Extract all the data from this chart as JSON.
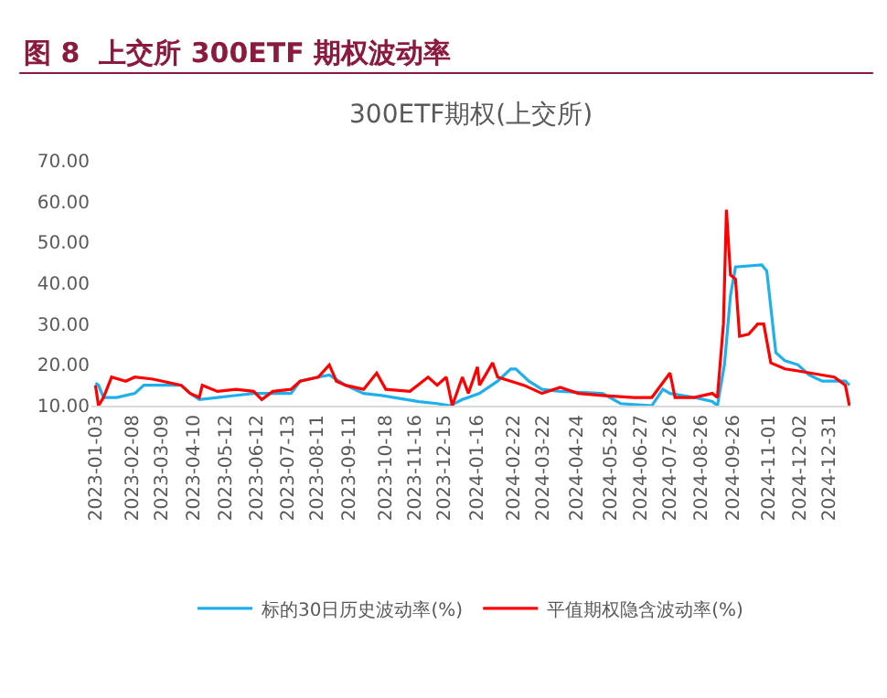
{
  "chart_data": {
    "type": "line",
    "title": "图 8  上交所 300ETF 期权波动率",
    "subtitle": "300ETF期权(上交所)",
    "xlim": [
      "2022-12-30",
      "2025-01-21"
    ],
    "xticks": [
      {
        "value": "2023-01-03",
        "label": "2023-01-03"
      },
      {
        "value": "2023-02-08",
        "label": "2023-02-08"
      },
      {
        "value": "2023-03-09",
        "label": "2023-03-09"
      },
      {
        "value": "2023-04-10",
        "label": "2023-04-10"
      },
      {
        "value": "2023-05-12",
        "label": "2023-05-12"
      },
      {
        "value": "2023-06-12",
        "label": "2023-06-12"
      },
      {
        "value": "2023-07-13",
        "label": "2023-07-13"
      },
      {
        "value": "2023-08-11",
        "label": "2023-08-11"
      },
      {
        "value": "2023-09-11",
        "label": "2023-09-11"
      },
      {
        "value": "2023-10-18",
        "label": "2023-10-18"
      },
      {
        "value": "2023-11-16",
        "label": "2023-11-16"
      },
      {
        "value": "2023-12-15",
        "label": "2023-12-15"
      },
      {
        "value": "2024-01-16",
        "label": "2024-01-16"
      },
      {
        "value": "2024-02-22",
        "label": "2024-02-22"
      },
      {
        "value": "2024-03-22",
        "label": "2024-03-22"
      },
      {
        "value": "2024-04-24",
        "label": "2024-04-24"
      },
      {
        "value": "2024-05-28",
        "label": "2024-05-28"
      },
      {
        "value": "2024-06-27",
        "label": "2024-06-27"
      },
      {
        "value": "2024-07-26",
        "label": "2024-07-26"
      },
      {
        "value": "2024-08-26",
        "label": "2024-08-26"
      },
      {
        "value": "2024-09-26",
        "label": "2024-09-26"
      },
      {
        "value": "2024-11-01",
        "label": "2024-11-01"
      },
      {
        "value": "2024-12-02",
        "label": "2024-12-02"
      },
      {
        "value": "2024-12-31",
        "label": "2024-12-31"
      }
    ],
    "ylim": [
      10,
      70
    ],
    "yticks": [
      {
        "value": 10,
        "label": "10.00"
      },
      {
        "value": 20,
        "label": "20.00"
      },
      {
        "value": 30,
        "label": "30.00"
      },
      {
        "value": 40,
        "label": "40.00"
      },
      {
        "value": 50,
        "label": "50.00"
      },
      {
        "value": 60,
        "label": "60.00"
      },
      {
        "value": 70,
        "label": "70.00"
      }
    ],
    "grid": false,
    "legend": "bottom",
    "series": [
      {
        "name": "标的30日历史波动率(%)",
        "color": "#1fb0ec",
        "x": [
          "2023-01-03",
          "2023-01-06",
          "2023-01-11",
          "2023-01-24",
          "2023-02-11",
          "2023-02-20",
          "2023-03-10",
          "2023-03-29",
          "2023-04-07",
          "2023-04-16",
          "2023-05-04",
          "2023-06-09",
          "2023-06-28",
          "2023-07-16",
          "2023-07-25",
          "2023-08-12",
          "2023-08-23",
          "2023-09-08",
          "2023-09-26",
          "2023-10-14",
          "2023-11-20",
          "2023-12-08",
          "2023-12-21",
          "2024-01-02",
          "2024-01-19",
          "2024-02-06",
          "2024-02-19",
          "2024-02-24",
          "2024-03-08",
          "2024-03-21",
          "2024-04-08",
          "2024-05-20",
          "2024-06-07",
          "2024-07-08",
          "2024-07-19",
          "2024-07-26",
          "2024-08-19",
          "2024-09-06",
          "2024-09-11",
          "2024-09-18",
          "2024-09-24",
          "2024-09-29",
          "2024-10-25",
          "2024-10-30",
          "2024-11-08",
          "2024-11-17",
          "2024-11-30",
          "2024-12-11",
          "2024-12-24",
          "2025-01-16",
          "2025-01-20"
        ],
        "values": [
          15.5,
          15,
          12,
          12,
          13,
          15,
          15,
          15,
          13,
          11.5,
          12,
          13,
          13,
          13,
          16,
          17,
          17.5,
          15,
          13,
          12.5,
          11,
          10.5,
          10,
          11.5,
          13,
          16,
          19,
          19,
          16,
          14,
          13.5,
          13,
          10.5,
          10,
          14,
          13,
          12,
          11,
          10,
          20,
          37,
          44,
          44.5,
          43,
          23,
          21,
          20,
          17.5,
          16,
          16,
          15
        ]
      },
      {
        "name": "平值期权隐含波动率(%)",
        "color": "#ff0000",
        "x": [
          "2023-01-03",
          "2023-01-06",
          "2023-01-11",
          "2023-01-19",
          "2023-02-02",
          "2023-02-11",
          "2023-03-01",
          "2023-03-29",
          "2023-04-07",
          "2023-04-16",
          "2023-04-19",
          "2023-05-04",
          "2023-05-22",
          "2023-06-09",
          "2023-06-17",
          "2023-06-28",
          "2023-07-16",
          "2023-07-25",
          "2023-08-12",
          "2023-08-23",
          "2023-08-30",
          "2023-09-08",
          "2023-09-26",
          "2023-10-09",
          "2023-10-18",
          "2023-11-11",
          "2023-11-29",
          "2023-12-08",
          "2023-12-17",
          "2023-12-23",
          "2024-01-02",
          "2024-01-08",
          "2024-01-17",
          "2024-01-19",
          "2024-02-01",
          "2024-02-06",
          "2024-02-19",
          "2024-03-03",
          "2024-03-21",
          "2024-04-08",
          "2024-04-26",
          "2024-05-20",
          "2024-06-20",
          "2024-07-08",
          "2024-07-26",
          "2024-07-31",
          "2024-08-19",
          "2024-09-06",
          "2024-09-11",
          "2024-09-17",
          "2024-09-20",
          "2024-09-24",
          "2024-09-29",
          "2024-10-03",
          "2024-10-12",
          "2024-10-21",
          "2024-10-27",
          "2024-11-03",
          "2024-11-17",
          "2024-11-30",
          "2024-12-24",
          "2025-01-05",
          "2025-01-16",
          "2025-01-20"
        ],
        "values": [
          15,
          10,
          12,
          17,
          16,
          17,
          16.5,
          15,
          13,
          12,
          15,
          13.5,
          14,
          13.5,
          11.5,
          13.5,
          14,
          16,
          17,
          20,
          16,
          15,
          14,
          18,
          14,
          13.5,
          17,
          15,
          17,
          10,
          17,
          13,
          19.5,
          15,
          20.5,
          17,
          16,
          15,
          13,
          14.5,
          13,
          12.5,
          12,
          12,
          18,
          12,
          12,
          13,
          12,
          30,
          58,
          42,
          41,
          27,
          27.5,
          30,
          30,
          20.5,
          19,
          18.5,
          17.5,
          17,
          15,
          10
        ]
      }
    ]
  }
}
